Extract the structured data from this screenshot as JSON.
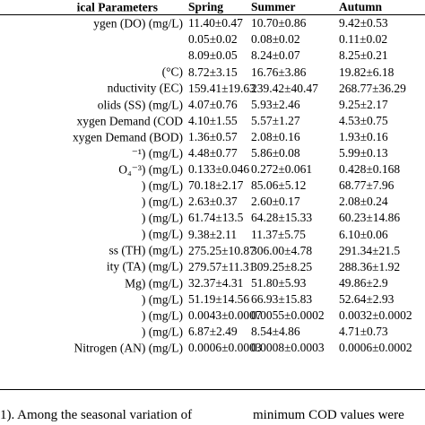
{
  "table": {
    "headers": [
      "ical Parameters",
      "Spring",
      "Summer",
      "Autumn"
    ],
    "rows": [
      {
        "param": "ygen (DO) (mg/L)",
        "spring": "11.40±0.47",
        "summer": "10.70±0.86",
        "autumn": "9.42±0.53"
      },
      {
        "param": "",
        "spring": "0.05±0.02",
        "summer": "0.08±0.02",
        "autumn": "0.11±0.02"
      },
      {
        "param": "",
        "spring": "8.09±0.05",
        "summer": "8.24±0.07",
        "autumn": "8.25±0.21"
      },
      {
        "param": "(°C)",
        "spring": "8.72±3.15",
        "summer": "16.76±3.86",
        "autumn": "19.82±6.18"
      },
      {
        "param": "nductivity (EC)",
        "spring": "159.41±19.63",
        "summer": "239.42±40.47",
        "autumn": "268.77±36.29"
      },
      {
        "param": "olids (SS) (mg/L)",
        "spring": "4.07±0.76",
        "summer": "5.93±2.46",
        "autumn": "9.25±2.17"
      },
      {
        "param": "xygen Demand (COD",
        "spring": "4.10±1.55",
        "summer": "5.57±1.27",
        "autumn": "4.53±0.75"
      },
      {
        "param": "xygen Demand (BOD)",
        "spring": "1.36±0.57",
        "summer": "2.08±0.16",
        "autumn": "1.93±0.16"
      },
      {
        "param": "⁻¹) (mg/L)",
        "spring": "4.48±0.77",
        "summer": "5.86±0.08",
        "autumn": "5.99±0.13"
      },
      {
        "param": "O₄⁻³) (mg/L)",
        "spring": "0.133±0.046",
        "summer": "0.272±0.061",
        "autumn": "0.428±0.168"
      },
      {
        "param": ") (mg/L)",
        "spring": "70.18±2.17",
        "summer": "85.06±5.12",
        "autumn": "68.77±7.96"
      },
      {
        "param": ") (mg/L)",
        "spring": "2.63±0.37",
        "summer": "2.60±0.17",
        "autumn": "2.08±0.24"
      },
      {
        "param": ") (mg/L)",
        "spring": "61.74±13.5",
        "summer": "64.28±15.33",
        "autumn": "60.23±14.86"
      },
      {
        "param": ") (mg/L)",
        "spring": "9.38±2.11",
        "summer": "11.37±5.75",
        "autumn": "6.10±0.06"
      },
      {
        "param": "ss (TH) (mg/L)",
        "spring": "275.25±10.87",
        "summer": "306.00±4.78",
        "autumn": "291.34±21.5"
      },
      {
        "param": "ity (TA) (mg/L)",
        "spring": "279.57±11.31",
        "summer": "309.25±8.25",
        "autumn": "288.36±1.92"
      },
      {
        "param": "Mg) (mg/L)",
        "spring": "32.37±4.31",
        "summer": "51.80±5.93",
        "autumn": "49.86±2.9"
      },
      {
        "param": ") (mg/L)",
        "spring": "51.19±14.56",
        "summer": "66.93±15.83",
        "autumn": "52.64±2.93"
      },
      {
        "param": ") (mg/L)",
        "spring": "0.0043±0.0007",
        "summer": "0.0055±0.0002",
        "autumn": "0.0032±0.0002"
      },
      {
        "param": ") (mg/L)",
        "spring": "6.87±2.49",
        "summer": "8.54±4.86",
        "autumn": "4.71±0.73"
      },
      {
        "param": "Nitrogen (AN) (mg/L)",
        "spring": "0.0006±0.0003",
        "summer": "0.0008±0.0003",
        "autumn": "0.0006±0.0002"
      }
    ]
  },
  "text": {
    "left": "1). Among the seasonal variation of",
    "right": "minimum COD values were"
  }
}
